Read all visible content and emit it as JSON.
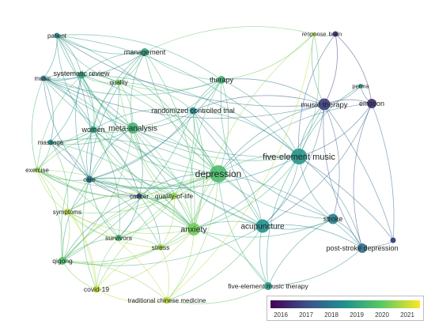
{
  "nodes": [
    {
      "id": "patient",
      "label": "patient",
      "year": 2018.4
    },
    {
      "id": "brain",
      "label": "brain",
      "year": 2016.2
    },
    {
      "id": "response",
      "label": "response",
      "year": 2020.9
    },
    {
      "id": "management",
      "label": "management",
      "year": 2019.0
    },
    {
      "id": "music",
      "label": "music",
      "year": 2018.0
    },
    {
      "id": "systematic-review",
      "label": "systematic review",
      "year": 2018.9
    },
    {
      "id": "quality",
      "label": "quality",
      "year": 2020.3
    },
    {
      "id": "therapy",
      "label": "therapy",
      "year": 2019.3
    },
    {
      "id": "perma",
      "label": "perma",
      "year": 2018.6
    },
    {
      "id": "music-therapy",
      "label": "music therapy",
      "year": 2016.6
    },
    {
      "id": "emotion",
      "label": "emotion",
      "year": 2016.3
    },
    {
      "id": "randomized-controlled-trial",
      "label": "randomized controlled trial",
      "year": 2018.3
    },
    {
      "id": "meta-analysis",
      "label": "meta-analysis",
      "year": 2019.4
    },
    {
      "id": "women",
      "label": "women",
      "year": 2018.9
    },
    {
      "id": "massage",
      "label": "massage",
      "year": 2018.5
    },
    {
      "id": "five-element-music",
      "label": "five-element music",
      "year": 2018.6
    },
    {
      "id": "exercise",
      "label": "exercise",
      "year": 2020.6
    },
    {
      "id": "care",
      "label": "care",
      "year": 2017.8
    },
    {
      "id": "depression",
      "label": "depression",
      "year": 2019.6
    },
    {
      "id": "cancer",
      "label": "cancer",
      "year": 2016.8
    },
    {
      "id": "quality-of-life",
      "label": "quality-of-life",
      "year": 2020.5
    },
    {
      "id": "symptoms",
      "label": "symptoms",
      "year": 2020.9
    },
    {
      "id": "anxiety",
      "label": "anxiety",
      "year": 2020.2
    },
    {
      "id": "acupuncture",
      "label": "acupuncture",
      "year": 2018.5
    },
    {
      "id": "stroke",
      "label": "stroke",
      "year": 2018.1
    },
    {
      "id": "survivors",
      "label": "survivors",
      "year": 2019.4
    },
    {
      "id": "stress",
      "label": "stress",
      "year": 2020.6
    },
    {
      "id": "post-stroke-depression",
      "label": "post-stroke depression",
      "year": 2017.6
    },
    {
      "id": "qigong",
      "label": "qigong",
      "year": 2019.7
    },
    {
      "id": "covid-19",
      "label": "covid-19",
      "year": 2021.0
    },
    {
      "id": "five-element-music-therapy",
      "label": "five-element music therapy",
      "year": 2018.7
    },
    {
      "id": "traditional-chinese-medicine",
      "label": "traditional chinese medicine",
      "year": 2020.9
    }
  ],
  "links": [
    [
      "depression",
      "five-element-music"
    ],
    [
      "depression",
      "anxiety"
    ],
    [
      "depression",
      "acupuncture"
    ],
    [
      "depression",
      "meta-analysis"
    ],
    [
      "depression",
      "management"
    ],
    [
      "depression",
      "therapy"
    ],
    [
      "depression",
      "music-therapy"
    ],
    [
      "depression",
      "stroke"
    ],
    [
      "depression",
      "post-stroke-depression"
    ],
    [
      "depression",
      "qigong"
    ],
    [
      "depression",
      "care"
    ],
    [
      "depression",
      "quality-of-life"
    ],
    [
      "depression",
      "women"
    ],
    [
      "depression",
      "systematic-review"
    ],
    [
      "depression",
      "randomized-controlled-trial"
    ],
    [
      "depression",
      "cancer"
    ],
    [
      "depression",
      "stress"
    ],
    [
      "depression",
      "survivors"
    ],
    [
      "depression",
      "symptoms"
    ],
    [
      "depression",
      "covid-19"
    ],
    [
      "depression",
      "exercise"
    ],
    [
      "depression",
      "massage"
    ],
    [
      "depression",
      "music"
    ],
    [
      "depression",
      "patient"
    ],
    [
      "depression",
      "traditional-chinese-medicine"
    ],
    [
      "depression",
      "five-element-music-therapy"
    ],
    [
      "depression",
      "emotion"
    ],
    [
      "depression",
      "quality"
    ],
    [
      "five-element-music",
      "music-therapy"
    ],
    [
      "five-element-music",
      "emotion"
    ],
    [
      "five-element-music",
      "acupuncture"
    ],
    [
      "five-element-music",
      "stroke"
    ],
    [
      "five-element-music",
      "post-stroke-depression"
    ],
    [
      "five-element-music",
      "five-element-music-therapy"
    ],
    [
      "five-element-music",
      "anxiety"
    ],
    [
      "five-element-music",
      "randomized-controlled-trial"
    ],
    [
      "five-element-music",
      "brain"
    ],
    [
      "five-element-music",
      "response"
    ],
    [
      "five-element-music",
      "perma"
    ],
    [
      "five-element-music",
      "therapy"
    ],
    [
      "five-element-music",
      "music"
    ],
    [
      "five-element-music",
      "systematic-review"
    ],
    [
      "five-element-music",
      "meta-analysis"
    ],
    [
      "five-element-music",
      "patient"
    ],
    [
      "five-element-music",
      "care"
    ],
    [
      "acupuncture",
      "stroke"
    ],
    [
      "acupuncture",
      "post-stroke-depression"
    ],
    [
      "acupuncture",
      "anxiety"
    ],
    [
      "acupuncture",
      "meta-analysis"
    ],
    [
      "acupuncture",
      "five-element-music-therapy"
    ],
    [
      "acupuncture",
      "systematic-review"
    ],
    [
      "acupuncture",
      "randomized-controlled-trial"
    ],
    [
      "acupuncture",
      "therapy"
    ],
    [
      "acupuncture",
      "music-therapy"
    ],
    [
      "acupuncture",
      "traditional-chinese-medicine"
    ],
    [
      "acupuncture",
      "care"
    ],
    [
      "acupuncture",
      "qigong"
    ],
    [
      "acupuncture",
      "emotion"
    ],
    [
      "music-therapy",
      "emotion"
    ],
    [
      "music-therapy",
      "brain"
    ],
    [
      "music-therapy",
      "response"
    ],
    [
      "music-therapy",
      "perma"
    ],
    [
      "music-therapy",
      "stroke"
    ],
    [
      "music-therapy",
      "post-stroke-depression"
    ],
    [
      "music-therapy",
      "anxiety"
    ],
    [
      "music-therapy",
      "therapy"
    ],
    [
      "music-therapy",
      "music"
    ],
    [
      "music-therapy",
      "randomized-controlled-trial"
    ],
    [
      "music-therapy",
      "patient"
    ],
    [
      "emotion",
      "brain"
    ],
    [
      "emotion",
      "perma"
    ],
    [
      "emotion",
      "post-stroke-depression"
    ],
    [
      "stroke",
      "post-stroke-depression"
    ],
    [
      "stroke",
      "five-element-music-therapy"
    ],
    [
      "stroke",
      "anxiety"
    ],
    [
      "anxiety",
      "meta-analysis"
    ],
    [
      "anxiety",
      "systematic-review"
    ],
    [
      "anxiety",
      "quality-of-life"
    ],
    [
      "anxiety",
      "stress"
    ],
    [
      "anxiety",
      "survivors"
    ],
    [
      "anxiety",
      "qigong"
    ],
    [
      "anxiety",
      "care"
    ],
    [
      "anxiety",
      "women"
    ],
    [
      "anxiety",
      "cancer"
    ],
    [
      "anxiety",
      "symptoms"
    ],
    [
      "anxiety",
      "exercise"
    ],
    [
      "anxiety",
      "covid-19"
    ],
    [
      "anxiety",
      "management"
    ],
    [
      "anxiety",
      "therapy"
    ],
    [
      "anxiety",
      "massage"
    ],
    [
      "anxiety",
      "traditional-chinese-medicine"
    ],
    [
      "anxiety",
      "randomized-controlled-trial"
    ],
    [
      "anxiety",
      "quality"
    ],
    [
      "anxiety",
      "music"
    ],
    [
      "meta-analysis",
      "systematic-review"
    ],
    [
      "meta-analysis",
      "quality-of-life"
    ],
    [
      "meta-analysis",
      "women"
    ],
    [
      "meta-analysis",
      "care"
    ],
    [
      "meta-analysis",
      "qigong"
    ],
    [
      "meta-analysis",
      "exercise"
    ],
    [
      "meta-analysis",
      "massage"
    ],
    [
      "meta-analysis",
      "music"
    ],
    [
      "meta-analysis",
      "management"
    ],
    [
      "meta-analysis",
      "randomized-controlled-trial"
    ],
    [
      "meta-analysis",
      "cancer"
    ],
    [
      "meta-analysis",
      "quality"
    ],
    [
      "meta-analysis",
      "patient"
    ],
    [
      "meta-analysis",
      "therapy"
    ],
    [
      "systematic-review",
      "music"
    ],
    [
      "systematic-review",
      "patient"
    ],
    [
      "systematic-review",
      "management"
    ],
    [
      "systematic-review",
      "quality"
    ],
    [
      "systematic-review",
      "massage"
    ],
    [
      "systematic-review",
      "care"
    ],
    [
      "systematic-review",
      "women"
    ],
    [
      "systematic-review",
      "exercise"
    ],
    [
      "management",
      "patient"
    ],
    [
      "management",
      "therapy"
    ],
    [
      "management",
      "quality"
    ],
    [
      "management",
      "care"
    ],
    [
      "management",
      "music"
    ],
    [
      "management",
      "women"
    ],
    [
      "management",
      "response"
    ],
    [
      "therapy",
      "randomized-controlled-trial"
    ],
    [
      "therapy",
      "quality"
    ],
    [
      "therapy",
      "response"
    ],
    [
      "therapy",
      "care"
    ],
    [
      "therapy",
      "patient"
    ],
    [
      "therapy",
      "music"
    ],
    [
      "music",
      "patient"
    ],
    [
      "music",
      "massage"
    ],
    [
      "music",
      "care"
    ],
    [
      "music",
      "women"
    ],
    [
      "music",
      "exercise"
    ],
    [
      "music",
      "quality"
    ],
    [
      "patient",
      "quality"
    ],
    [
      "patient",
      "care"
    ],
    [
      "patient",
      "women"
    ],
    [
      "care",
      "women"
    ],
    [
      "care",
      "massage"
    ],
    [
      "care",
      "exercise"
    ],
    [
      "care",
      "cancer"
    ],
    [
      "care",
      "symptoms"
    ],
    [
      "care",
      "survivors"
    ],
    [
      "care",
      "quality-of-life"
    ],
    [
      "care",
      "qigong"
    ],
    [
      "care",
      "stress"
    ],
    [
      "care",
      "covid-19"
    ],
    [
      "women",
      "massage"
    ],
    [
      "women",
      "exercise"
    ],
    [
      "women",
      "cancer"
    ],
    [
      "women",
      "quality-of-life"
    ],
    [
      "women",
      "survivors"
    ],
    [
      "women",
      "qigong"
    ],
    [
      "massage",
      "exercise"
    ],
    [
      "massage",
      "cancer"
    ],
    [
      "massage",
      "symptoms"
    ],
    [
      "exercise",
      "symptoms"
    ],
    [
      "exercise",
      "qigong"
    ],
    [
      "exercise",
      "quality-of-life"
    ],
    [
      "exercise",
      "survivors"
    ],
    [
      "exercise",
      "cancer"
    ],
    [
      "exercise",
      "covid-19"
    ],
    [
      "cancer",
      "quality-of-life"
    ],
    [
      "cancer",
      "survivors"
    ],
    [
      "cancer",
      "symptoms"
    ],
    [
      "cancer",
      "stress"
    ],
    [
      "cancer",
      "qigong"
    ],
    [
      "quality-of-life",
      "survivors"
    ],
    [
      "quality-of-life",
      "symptoms"
    ],
    [
      "quality-of-life",
      "stress"
    ],
    [
      "quality-of-life",
      "qigong"
    ],
    [
      "symptoms",
      "qigong"
    ],
    [
      "symptoms",
      "survivors"
    ],
    [
      "symptoms",
      "covid-19"
    ],
    [
      "symptoms",
      "stress"
    ],
    [
      "symptoms",
      "traditional-chinese-medicine"
    ],
    [
      "survivors",
      "qigong"
    ],
    [
      "survivors",
      "stress"
    ],
    [
      "survivors",
      "covid-19"
    ],
    [
      "stress",
      "qigong"
    ],
    [
      "stress",
      "covid-19"
    ],
    [
      "stress",
      "traditional-chinese-medicine"
    ],
    [
      "qigong",
      "covid-19"
    ],
    [
      "qigong",
      "traditional-chinese-medicine"
    ],
    [
      "covid-19",
      "traditional-chinese-medicine"
    ],
    [
      "five-element-music-therapy",
      "traditional-chinese-medicine"
    ],
    [
      "five-element-music-therapy",
      "anxiety"
    ],
    [
      "post-stroke-depression",
      "five-element-music-therapy"
    ],
    [
      "randomized-controlled-trial",
      "women"
    ],
    [
      "randomized-controlled-trial",
      "care"
    ],
    [
      "randomized-controlled-trial",
      "quality"
    ],
    [
      "randomized-controlled-trial",
      "qigong"
    ],
    [
      "randomized-controlled-trial",
      "stroke"
    ],
    [
      "randomized-controlled-trial",
      "quality-of-life"
    ],
    [
      "quality",
      "women"
    ],
    [
      "quality",
      "care"
    ],
    [
      "response",
      "brain"
    ],
    [
      "response",
      "traditional-chinese-medicine"
    ],
    [
      "response",
      "anxiety"
    ]
  ],
  "legend": {
    "min_year": 2015.5,
    "max_year": 2021.5,
    "ticks": [
      "2016",
      "2017",
      "2018",
      "2019",
      "2020",
      "2021"
    ]
  },
  "colors": {
    "scale": [
      "#440154",
      "#3b528b",
      "#21918c",
      "#5ec962",
      "#fde725"
    ]
  }
}
